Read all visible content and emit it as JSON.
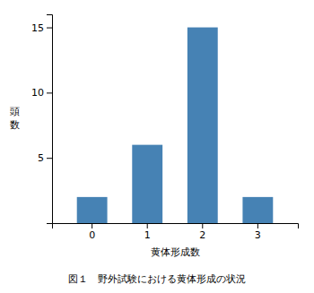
{
  "chart_data": {
    "type": "bar",
    "categories": [
      0,
      1,
      2,
      3
    ],
    "values": [
      2,
      6,
      15,
      2
    ],
    "xlabel": "黄体形成数",
    "ylabel": "頭数",
    "caption": "図１　野外試験における黄体形成の状況",
    "ylim": [
      0,
      16
    ],
    "yticks": [
      5,
      10,
      15
    ],
    "grid": false
  }
}
